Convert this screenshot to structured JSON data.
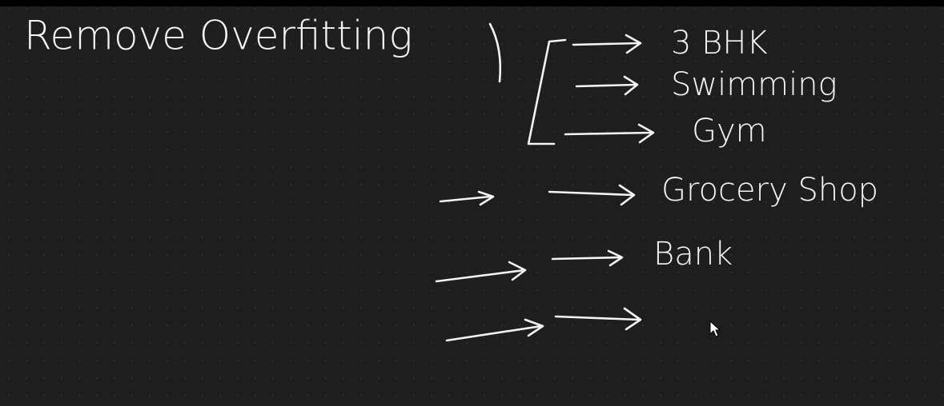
{
  "title": "Remove Overfitting",
  "items": [
    "3 BHK",
    "Swimming",
    "Gym",
    "Grocery Shop",
    "Bank"
  ]
}
